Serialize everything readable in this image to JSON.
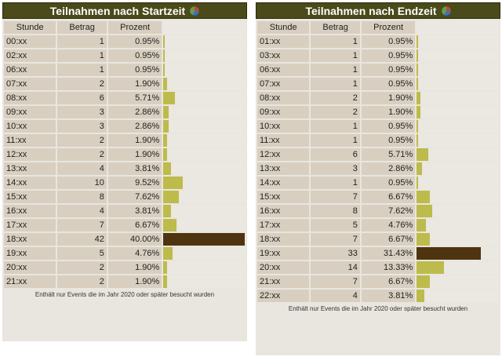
{
  "panels": [
    {
      "id": "start",
      "title": "Teilnahmen nach Startzeit",
      "columns": [
        "Stunde",
        "Betrag",
        "Prozent"
      ],
      "rows": [
        {
          "hour": "00:xx",
          "count": 1,
          "pct": "0.95%",
          "fraction": 0.0095
        },
        {
          "hour": "02:xx",
          "count": 1,
          "pct": "0.95%",
          "fraction": 0.0095
        },
        {
          "hour": "06:xx",
          "count": 1,
          "pct": "0.95%",
          "fraction": 0.0095
        },
        {
          "hour": "07:xx",
          "count": 2,
          "pct": "1.90%",
          "fraction": 0.019
        },
        {
          "hour": "08:xx",
          "count": 6,
          "pct": "5.71%",
          "fraction": 0.0571
        },
        {
          "hour": "09:xx",
          "count": 3,
          "pct": "2.86%",
          "fraction": 0.0286
        },
        {
          "hour": "10:xx",
          "count": 3,
          "pct": "2.86%",
          "fraction": 0.0286
        },
        {
          "hour": "11:xx",
          "count": 2,
          "pct": "1.90%",
          "fraction": 0.019
        },
        {
          "hour": "12:xx",
          "count": 2,
          "pct": "1.90%",
          "fraction": 0.019
        },
        {
          "hour": "13:xx",
          "count": 4,
          "pct": "3.81%",
          "fraction": 0.0381
        },
        {
          "hour": "14:xx",
          "count": 10,
          "pct": "9.52%",
          "fraction": 0.0952
        },
        {
          "hour": "15:xx",
          "count": 8,
          "pct": "7.62%",
          "fraction": 0.0762
        },
        {
          "hour": "16:xx",
          "count": 4,
          "pct": "3.81%",
          "fraction": 0.0381
        },
        {
          "hour": "17:xx",
          "count": 7,
          "pct": "6.67%",
          "fraction": 0.0667
        },
        {
          "hour": "18:xx",
          "count": 42,
          "pct": "40.00%",
          "fraction": 0.4,
          "max": true
        },
        {
          "hour": "19:xx",
          "count": 5,
          "pct": "4.76%",
          "fraction": 0.0476
        },
        {
          "hour": "20:xx",
          "count": 2,
          "pct": "1.90%",
          "fraction": 0.019
        },
        {
          "hour": "21:xx",
          "count": 2,
          "pct": "1.90%",
          "fraction": 0.019
        }
      ],
      "footnote": "Enthält nur Events die im Jahr 2020 oder später besucht wurden"
    },
    {
      "id": "end",
      "title": "Teilnahmen nach Endzeit",
      "columns": [
        "Stunde",
        "Betrag",
        "Prozent"
      ],
      "rows": [
        {
          "hour": "01:xx",
          "count": 1,
          "pct": "0.95%",
          "fraction": 0.0095
        },
        {
          "hour": "03:xx",
          "count": 1,
          "pct": "0.95%",
          "fraction": 0.0095
        },
        {
          "hour": "06:xx",
          "count": 1,
          "pct": "0.95%",
          "fraction": 0.0095
        },
        {
          "hour": "07:xx",
          "count": 1,
          "pct": "0.95%",
          "fraction": 0.0095
        },
        {
          "hour": "08:xx",
          "count": 2,
          "pct": "1.90%",
          "fraction": 0.019
        },
        {
          "hour": "09:xx",
          "count": 2,
          "pct": "1.90%",
          "fraction": 0.019
        },
        {
          "hour": "10:xx",
          "count": 1,
          "pct": "0.95%",
          "fraction": 0.0095
        },
        {
          "hour": "11:xx",
          "count": 1,
          "pct": "0.95%",
          "fraction": 0.0095
        },
        {
          "hour": "12:xx",
          "count": 6,
          "pct": "5.71%",
          "fraction": 0.0571
        },
        {
          "hour": "13:xx",
          "count": 3,
          "pct": "2.86%",
          "fraction": 0.0286
        },
        {
          "hour": "14:xx",
          "count": 1,
          "pct": "0.95%",
          "fraction": 0.0095
        },
        {
          "hour": "15:xx",
          "count": 7,
          "pct": "6.67%",
          "fraction": 0.0667
        },
        {
          "hour": "16:xx",
          "count": 8,
          "pct": "7.62%",
          "fraction": 0.0762
        },
        {
          "hour": "17:xx",
          "count": 5,
          "pct": "4.76%",
          "fraction": 0.0476
        },
        {
          "hour": "18:xx",
          "count": 7,
          "pct": "6.67%",
          "fraction": 0.0667
        },
        {
          "hour": "19:xx",
          "count": 33,
          "pct": "31.43%",
          "fraction": 0.3143,
          "max": true
        },
        {
          "hour": "20:xx",
          "count": 14,
          "pct": "13.33%",
          "fraction": 0.1333
        },
        {
          "hour": "21:xx",
          "count": 7,
          "pct": "6.67%",
          "fraction": 0.0667
        },
        {
          "hour": "22:xx",
          "count": 4,
          "pct": "3.81%",
          "fraction": 0.0381
        }
      ],
      "footnote": "Enthält nur Events die im Jahr 2020 oder später besucht wurden"
    }
  ],
  "colors": {
    "header_bg": "#4a4a1a",
    "cell_bg": "#d8cfc0",
    "bar": "#bdbb4c",
    "bar_max": "#4f3410"
  },
  "icons": {
    "header_icon": "pie-chart-icon"
  }
}
